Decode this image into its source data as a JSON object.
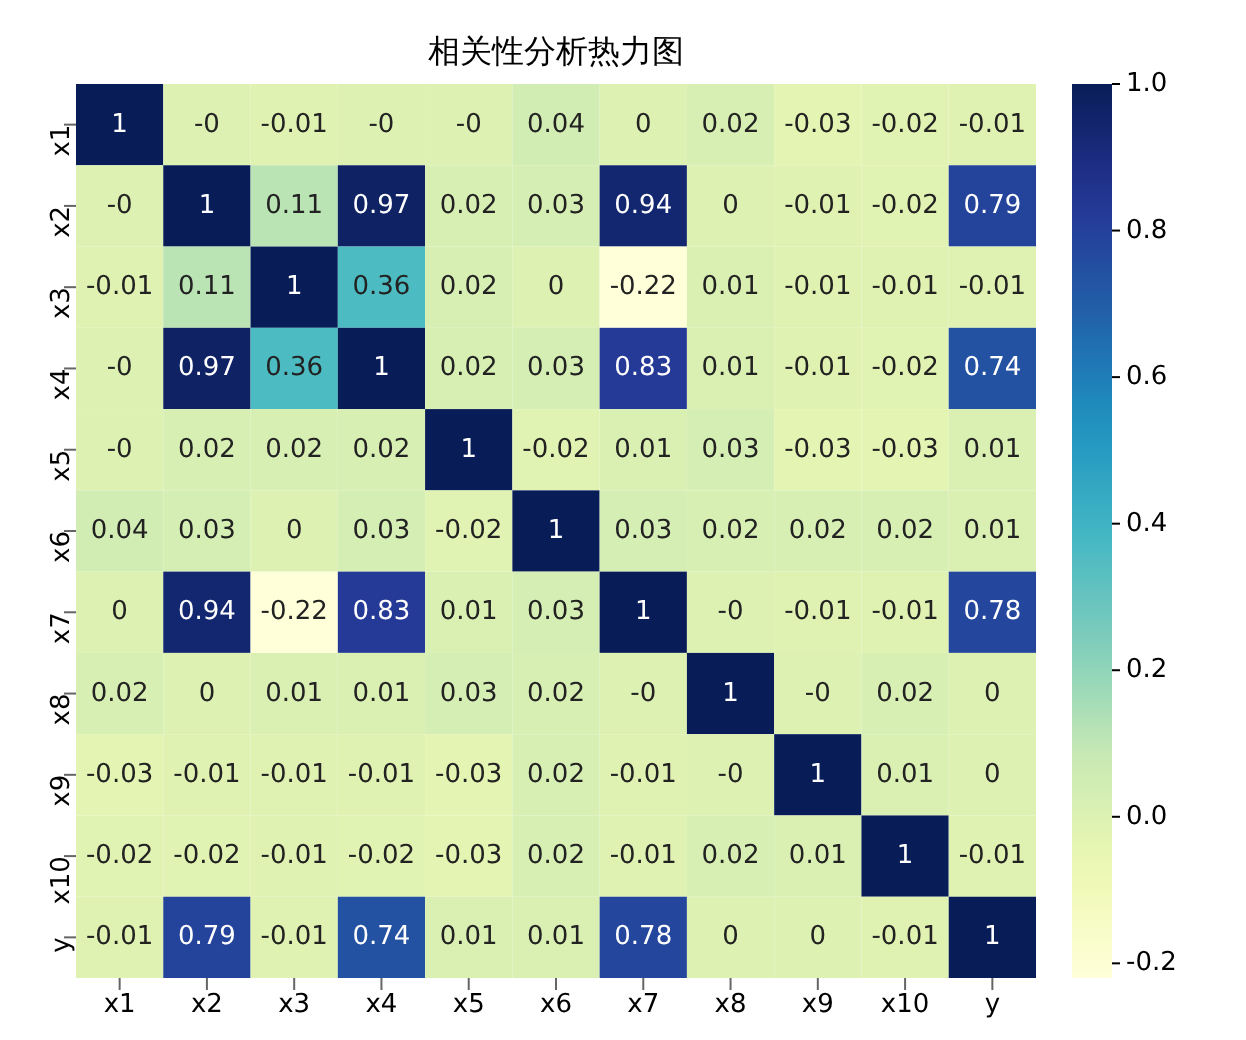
{
  "chart_data": {
    "type": "heatmap",
    "title": "相关性分析热力图",
    "categories": [
      "x1",
      "x2",
      "x3",
      "x4",
      "x5",
      "x6",
      "x7",
      "x8",
      "x9",
      "x10",
      "y"
    ],
    "y_categories": [
      "x1",
      "x2",
      "x3",
      "x4",
      "x5",
      "x6",
      "x7",
      "x8",
      "x9",
      "x10",
      "y"
    ],
    "cells": [
      [
        1,
        0,
        -0.01,
        0,
        0,
        0.04,
        0,
        0.02,
        -0.03,
        -0.02,
        -0.01
      ],
      [
        0,
        1,
        0.11,
        0.97,
        0.02,
        0.03,
        0.94,
        0,
        -0.01,
        -0.02,
        0.79
      ],
      [
        -0.01,
        0.11,
        1,
        0.36,
        0.02,
        0,
        -0.22,
        0.01,
        -0.01,
        -0.01,
        -0.01
      ],
      [
        0,
        0.97,
        0.36,
        1,
        0.02,
        0.03,
        0.83,
        0.01,
        -0.01,
        -0.02,
        0.74
      ],
      [
        0,
        0.02,
        0.02,
        0.02,
        1,
        -0.02,
        0.01,
        0.03,
        -0.03,
        -0.03,
        0.01
      ],
      [
        0.04,
        0.03,
        0,
        0.03,
        -0.02,
        1,
        0.03,
        0.02,
        0.02,
        0.02,
        0.01
      ],
      [
        0,
        0.94,
        -0.22,
        0.83,
        0.01,
        0.03,
        1,
        0,
        -0.01,
        -0.01,
        0.78
      ],
      [
        0.02,
        0,
        0.01,
        0.01,
        0.03,
        0.02,
        0,
        1,
        0,
        0.02,
        0
      ],
      [
        -0.03,
        -0.01,
        -0.01,
        -0.01,
        -0.03,
        0.02,
        -0.01,
        0,
        1,
        0.01,
        0
      ],
      [
        -0.02,
        -0.02,
        -0.01,
        -0.02,
        -0.03,
        0.02,
        -0.01,
        0.02,
        0.01,
        1,
        -0.01
      ],
      [
        -0.01,
        0.79,
        -0.01,
        0.74,
        0.01,
        0.01,
        0.78,
        0,
        0,
        -0.01,
        1
      ]
    ],
    "cell_labels": [
      [
        "1",
        "-0",
        "-0.01",
        "-0",
        "-0",
        "0.04",
        "0",
        "0.02",
        "-0.03",
        "-0.02",
        "-0.01"
      ],
      [
        "-0",
        "1",
        "0.11",
        "0.97",
        "0.02",
        "0.03",
        "0.94",
        "0",
        "-0.01",
        "-0.02",
        "0.79"
      ],
      [
        "-0.01",
        "0.11",
        "1",
        "0.36",
        "0.02",
        "0",
        "-0.22",
        "0.01",
        "-0.01",
        "-0.01",
        "-0.01"
      ],
      [
        "-0",
        "0.97",
        "0.36",
        "1",
        "0.02",
        "0.03",
        "0.83",
        "0.01",
        "-0.01",
        "-0.02",
        "0.74"
      ],
      [
        "-0",
        "0.02",
        "0.02",
        "0.02",
        "1",
        "-0.02",
        "0.01",
        "0.03",
        "-0.03",
        "-0.03",
        "0.01"
      ],
      [
        "0.04",
        "0.03",
        "0",
        "0.03",
        "-0.02",
        "1",
        "0.03",
        "0.02",
        "0.02",
        "0.02",
        "0.01"
      ],
      [
        "0",
        "0.94",
        "-0.22",
        "0.83",
        "0.01",
        "0.03",
        "1",
        "-0",
        "-0.01",
        "-0.01",
        "0.78"
      ],
      [
        "0.02",
        "0",
        "0.01",
        "0.01",
        "0.03",
        "0.02",
        "-0",
        "1",
        "-0",
        "0.02",
        "0"
      ],
      [
        "-0.03",
        "-0.01",
        "-0.01",
        "-0.01",
        "-0.03",
        "0.02",
        "-0.01",
        "-0",
        "1",
        "0.01",
        "0"
      ],
      [
        "-0.02",
        "-0.02",
        "-0.01",
        "-0.02",
        "-0.03",
        "0.02",
        "-0.01",
        "0.02",
        "0.01",
        "1",
        "-0.01"
      ],
      [
        "-0.01",
        "0.79",
        "-0.01",
        "0.74",
        "0.01",
        "0.01",
        "0.78",
        "0",
        "0",
        "-0.01",
        "1"
      ]
    ],
    "clim": [
      -0.22,
      1
    ],
    "cticks": [
      -0.2,
      {
        "value": 0,
        "label": "0.0"
      },
      0.2,
      0.4,
      0.6,
      0.8,
      {
        "value": 1,
        "label": "1.0"
      }
    ]
  }
}
